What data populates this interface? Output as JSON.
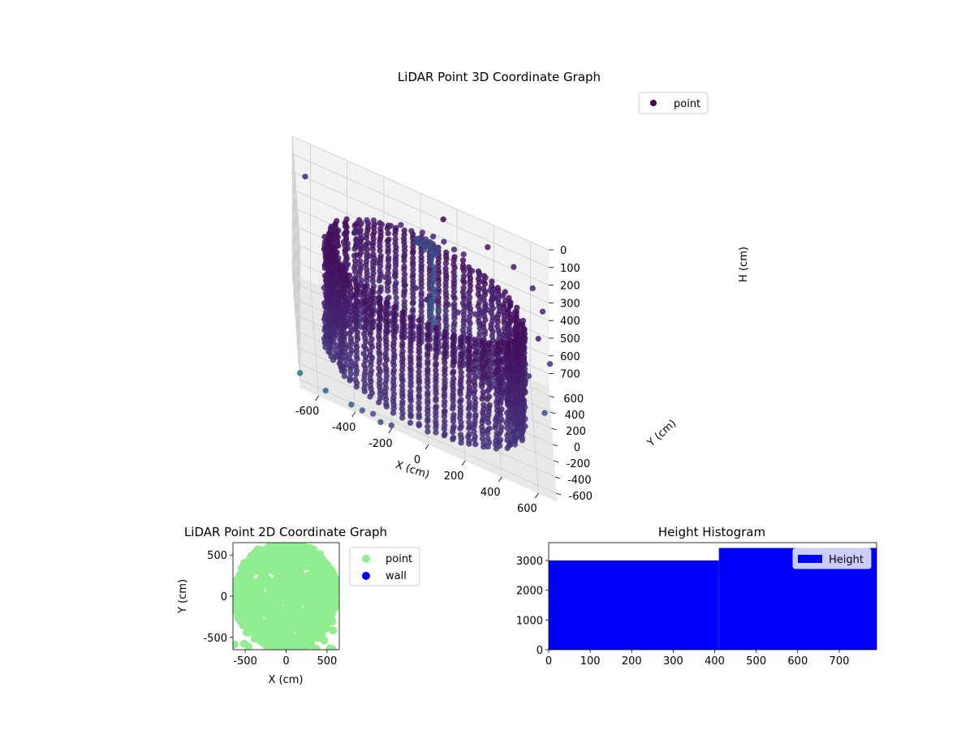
{
  "chart_data": [
    {
      "type": "scatter",
      "projection": "3d",
      "title": "LiDAR Point 3D Coordinate Graph",
      "xlabel": "X (cm)",
      "ylabel": "Y (cm)",
      "zlabel": "H (cm)",
      "xlim": [
        -700,
        700
      ],
      "ylim": [
        -700,
        700
      ],
      "zlim": [
        0,
        780
      ],
      "z_inverted": true,
      "x_ticks": [
        -600,
        -400,
        -200,
        0,
        200,
        400,
        600
      ],
      "y_ticks": [
        -600,
        -400,
        -200,
        0,
        200,
        400,
        600
      ],
      "z_ticks": [
        0,
        100,
        200,
        300,
        400,
        500,
        600,
        700
      ],
      "legend": {
        "entries": [
          "point"
        ],
        "placement": "top-right",
        "color": "#440154"
      },
      "colormap": "viridis",
      "grid": true,
      "series": [
        {
          "name": "point",
          "description_of_structure": "dense circular wall of radius ~530 cm from H 180 to 780, central pillar near origin, ring of ceiling points, scattered outliers",
          "wall_radius": 530,
          "wall_h_range": [
            180,
            780
          ],
          "outliers": [
            [
              -640,
              350,
              40
            ],
            [
              120,
              540,
              20
            ],
            [
              360,
              480,
              40
            ],
            [
              500,
              420,
              60
            ],
            [
              600,
              300,
              80
            ],
            [
              650,
              150,
              120
            ],
            [
              620,
              -40,
              200
            ],
            [
              680,
              -160,
              260
            ],
            [
              560,
              -300,
              320
            ],
            [
              640,
              -500,
              400
            ],
            [
              -700,
              -650,
              720
            ],
            [
              -560,
              -640,
              760
            ],
            [
              -420,
              -650,
              770
            ],
            [
              -360,
              -640,
              780
            ],
            [
              -300,
              -600,
              790
            ],
            [
              -260,
              -640,
              800
            ],
            [
              -200,
              -620,
              800
            ],
            [
              20,
              60,
              300
            ],
            [
              80,
              120,
              360
            ]
          ]
        }
      ]
    },
    {
      "type": "scatter",
      "title": "LiDAR Point 2D Coordinate Graph",
      "xlabel": "X (cm)",
      "ylabel": "Y (cm)",
      "xlim": [
        -650,
        650
      ],
      "ylim": [
        -650,
        650
      ],
      "x_ticks": [
        -500,
        0,
        500
      ],
      "y_ticks": [
        -500,
        0,
        500
      ],
      "legend": {
        "placement": "outside-right"
      },
      "series": [
        {
          "name": "point",
          "color": "#90ee90"
        },
        {
          "name": "wall",
          "color": "#0000ff"
        }
      ]
    },
    {
      "type": "bar",
      "subtype": "histogram",
      "title": "Height Histogram",
      "bins": [
        [
          0,
          410
        ],
        [
          410,
          790
        ]
      ],
      "values": [
        3000,
        3420
      ],
      "xlim": [
        0,
        790
      ],
      "ylim": [
        0,
        3600
      ],
      "x_ticks": [
        0,
        100,
        200,
        300,
        400,
        500,
        600,
        700
      ],
      "y_ticks": [
        0,
        1000,
        2000,
        3000
      ],
      "legend": {
        "entries": [
          "Height"
        ],
        "placement": "top-right"
      },
      "series": [
        {
          "name": "Height",
          "color": "#0000ff"
        }
      ]
    }
  ]
}
